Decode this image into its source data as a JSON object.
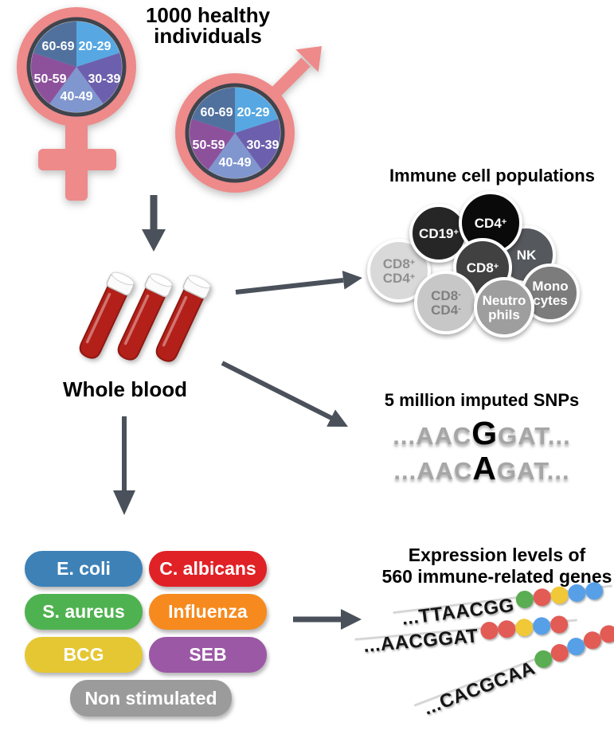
{
  "cohort": {
    "title_line1": "1000 healthy",
    "title_line2": "individuals",
    "age_groups": [
      "20-29",
      "30-39",
      "40-49",
      "50-59",
      "60-69"
    ],
    "slice_colors": [
      "#57a8e2",
      "#6c60ae",
      "#8096cf",
      "#8d519c",
      "#50719e"
    ],
    "symbol_color": "#ee8a8a"
  },
  "blood": {
    "label": "Whole blood",
    "tube_color": "#b32019"
  },
  "immune_cells": {
    "title": "Immune cell populations",
    "cells": [
      {
        "id": "cd19",
        "line1": "CD19",
        "sup1": "+",
        "line2": "",
        "sup2": "",
        "bg": "#262626",
        "fg": "#ffffff"
      },
      {
        "id": "cd4",
        "line1": "CD4",
        "sup1": "+",
        "line2": "",
        "sup2": "",
        "bg": "#0a0a0a",
        "fg": "#ffffff"
      },
      {
        "id": "nk",
        "line1": "NK",
        "sup1": "",
        "line2": "",
        "sup2": "",
        "bg": "#55585c",
        "fg": "#ffffff"
      },
      {
        "id": "cd8pos-cd4pos",
        "line1": "CD8",
        "sup1": "+",
        "line2": "CD4",
        "sup2": "+",
        "bg": "#d9d9d9",
        "fg": "#8f8f8f"
      },
      {
        "id": "cd8",
        "line1": "CD8",
        "sup1": "+",
        "line2": "",
        "sup2": "",
        "bg": "#414141",
        "fg": "#ffffff"
      },
      {
        "id": "monocytes",
        "line1": "Mono",
        "sup1": "",
        "line2": "cytes",
        "sup2": "",
        "bg": "#7c7c7c",
        "fg": "#ffffff"
      },
      {
        "id": "cd8neg-cd4neg",
        "line1": "CD8",
        "sup1": "-",
        "line2": "CD4",
        "sup2": "-",
        "bg": "#c7c7c7",
        "fg": "#7f7f7f"
      },
      {
        "id": "neutrophils",
        "line1": "Neutro",
        "sup1": "",
        "line2": "phils",
        "sup2": "",
        "bg": "#9e9e9e",
        "fg": "#ffffff"
      }
    ]
  },
  "snps": {
    "title": "5 million imputed SNPs",
    "sequences": [
      {
        "prefix": "...AAC",
        "allele": "G",
        "suffix": "GAT..."
      },
      {
        "prefix": "...AAC",
        "allele": "A",
        "suffix": "GAT..."
      }
    ]
  },
  "stimuli": {
    "items": [
      {
        "label": "E. coli",
        "color": "#3e81b7"
      },
      {
        "label": "C. albicans",
        "color": "#e02126"
      },
      {
        "label": "S. aureus",
        "color": "#4fb250"
      },
      {
        "label": "Influenza",
        "color": "#f68a1e"
      },
      {
        "label": "BCG",
        "color": "#e5c733"
      },
      {
        "label": "SEB",
        "color": "#9b58a5"
      },
      {
        "label": "Non stimulated",
        "color": "#9b9b9b"
      }
    ]
  },
  "expression": {
    "title_line1": "Expression levels of",
    "title_line2": "560 immune-related genes",
    "dot_colors": {
      "green": "#5aad52",
      "red": "#e25b54",
      "yellow": "#f0c838",
      "blue": "#57a0e8"
    },
    "genes": [
      {
        "sequence": "...TTAACGG",
        "dots": [
          "green",
          "red",
          "yellow",
          "blue",
          "blue"
        ]
      },
      {
        "sequence": "...AACGGAT",
        "dots": [
          "red",
          "red",
          "yellow",
          "blue",
          "red"
        ]
      },
      {
        "sequence": "...CACGCAA",
        "dots": [
          "green",
          "red",
          "blue",
          "red",
          "red"
        ]
      }
    ]
  },
  "arrow_color": "#4a515a"
}
